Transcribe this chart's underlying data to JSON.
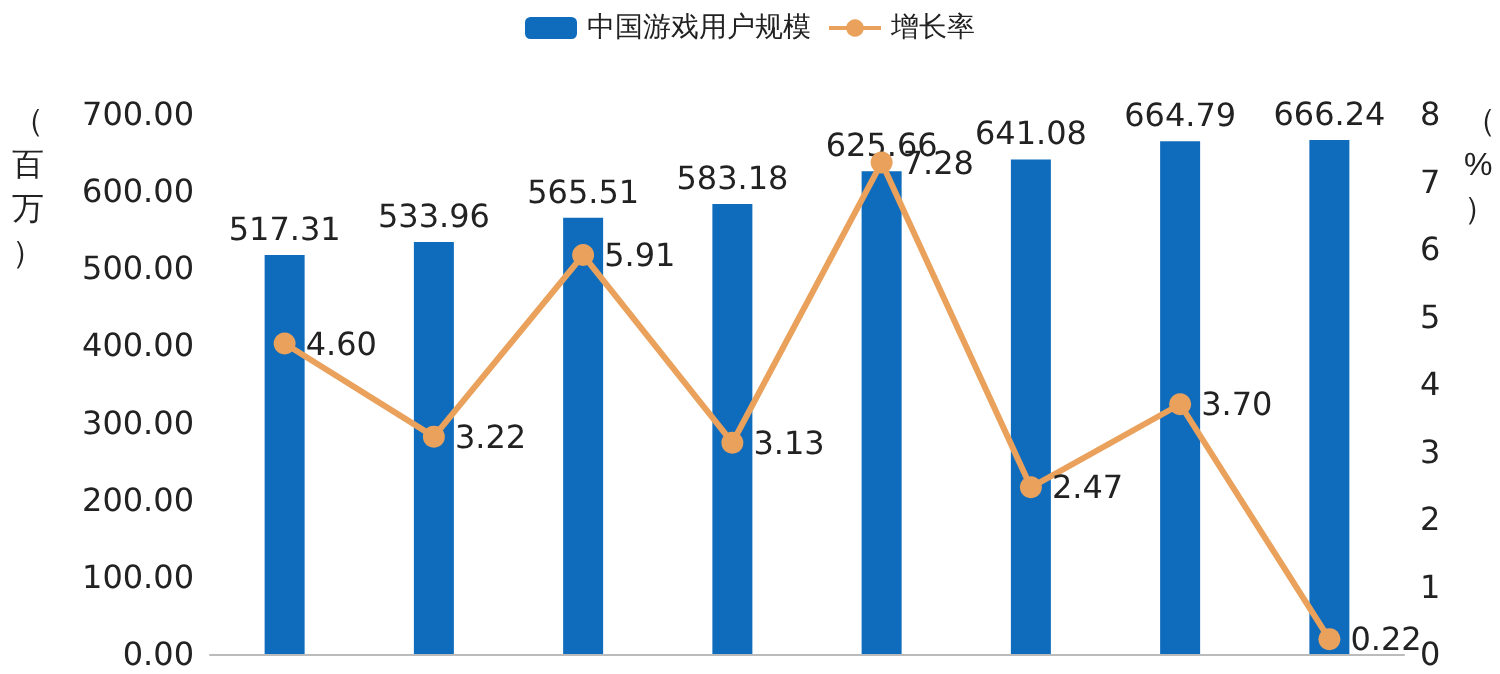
{
  "chart_data": {
    "type": "bar",
    "categories": [
      null,
      null,
      null,
      null,
      null,
      null,
      null,
      null
    ],
    "ylabel": "（百万）",
    "y2label": "（%）",
    "series": [
      {
        "name": "中国游戏用户规模",
        "color": "#0f6cbd",
        "values": [
          517.31,
          533.96,
          565.51,
          583.18,
          625.66,
          641.08,
          664.79,
          666.24
        ],
        "value_labels": [
          "517.31",
          "533.96",
          "565.51",
          "583.18",
          "625.66",
          "641.08",
          "664.79",
          "666.24"
        ]
      },
      {
        "name": "增长率",
        "type": "line",
        "axis": "y2",
        "color": "#e9a15b",
        "values": [
          4.6,
          3.22,
          5.91,
          3.13,
          7.28,
          2.47,
          3.7,
          0.22
        ],
        "value_labels": [
          "4.60",
          "3.22",
          "5.91",
          "3.13",
          "7.28",
          "2.47",
          "3.70",
          "0.22"
        ]
      }
    ],
    "ylim": [
      0,
      700
    ],
    "yticks": [
      {
        "value": 0,
        "label": "0.00"
      },
      {
        "value": 100,
        "label": "100.00"
      },
      {
        "value": 200,
        "label": "200.00"
      },
      {
        "value": 300,
        "label": "300.00"
      },
      {
        "value": 400,
        "label": "400.00"
      },
      {
        "value": 500,
        "label": "500.00"
      },
      {
        "value": 600,
        "label": "600.00"
      },
      {
        "value": 700,
        "label": "700.00"
      }
    ],
    "y2lim": [
      0,
      8
    ],
    "y2ticks": [
      0,
      1,
      2,
      3,
      4,
      5,
      6,
      7,
      8
    ],
    "marker": "circle",
    "legend": "top",
    "grid": false
  }
}
